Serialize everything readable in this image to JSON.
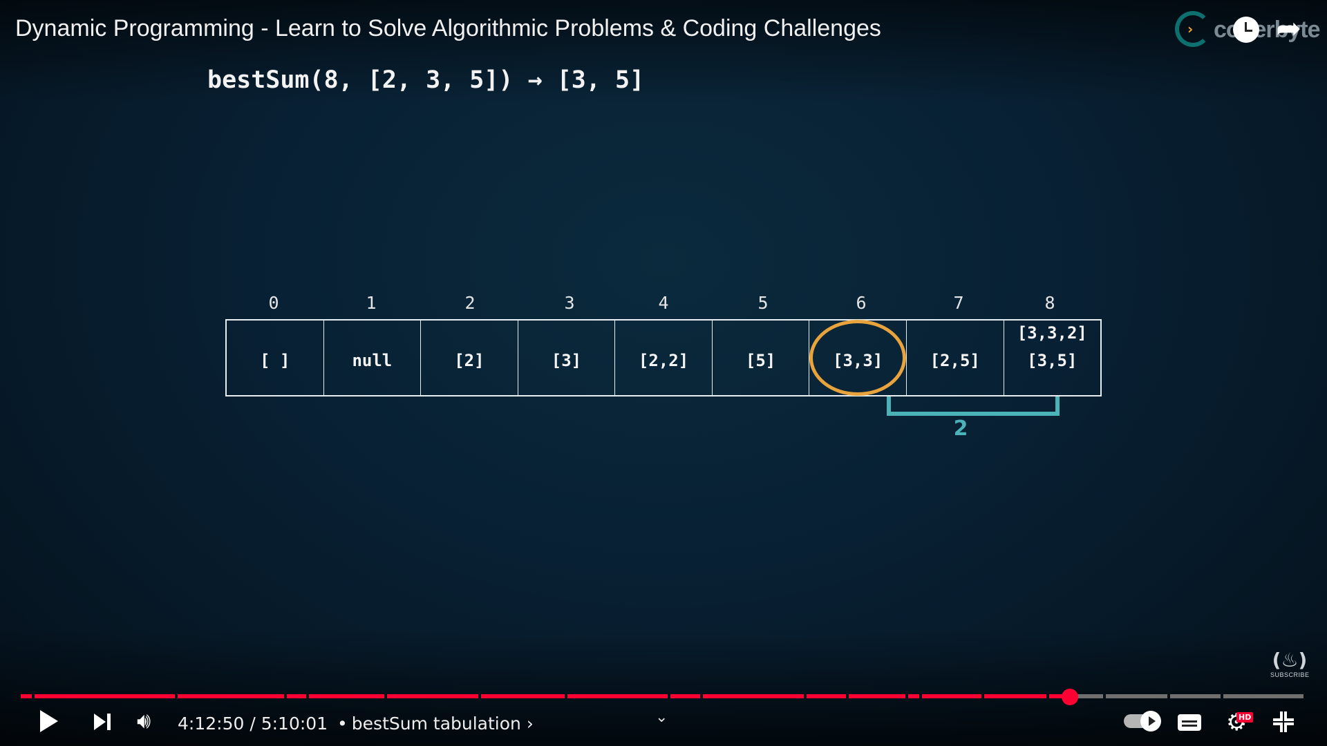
{
  "player": {
    "title": "Dynamic Programming - Learn to Solve Algorithmic Problems & Coding Challenges",
    "channel_logo_text": "coderbyte",
    "current_time": "4:12:50",
    "duration": "5:10:01",
    "time_separator": "/",
    "chapter_separator": "•",
    "chapter": "bestSum tabulation",
    "chapter_chevron": "›",
    "progress_fraction": 0.816,
    "watermark_label": "SUBSCRIBE",
    "hd_badge": "HD",
    "icons": {
      "share": "share-icon",
      "watch_later": "watch-later-icon",
      "play": "play-icon",
      "next": "next-icon",
      "volume": "volume-icon",
      "autoplay": "autoplay-toggle-icon",
      "captions": "captions-icon",
      "settings": "gear-icon",
      "fullscreen": "exit-fullscreen-icon",
      "chevron": "chevron-down-icon"
    },
    "colors": {
      "progress_played": "#ff0033",
      "progress_buffered": "#6f6f6f",
      "accent_orange": "#e8a33d",
      "accent_teal": "#4bb2b8"
    }
  },
  "slide": {
    "formula": "bestSum(8, [2, 3, 5]) → [3, 5]",
    "indices": [
      "0",
      "1",
      "2",
      "3",
      "4",
      "5",
      "6",
      "7",
      "8"
    ],
    "cells": [
      "[ ]",
      "null",
      "[2]",
      "[3]",
      "[2,2]",
      "[5]",
      "[3,3]",
      "[2,5]",
      "[3,5]"
    ],
    "cell8_previous": "[3,3,2]",
    "highlighted_index": "6",
    "bracket_label": "2"
  }
}
